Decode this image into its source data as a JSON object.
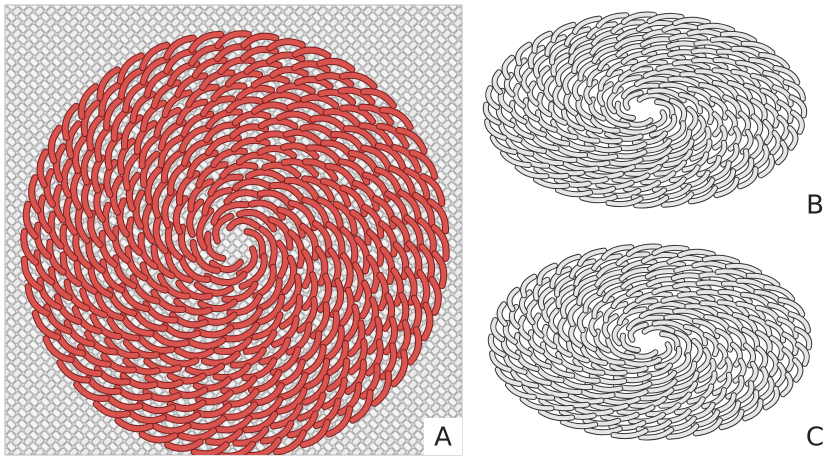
{
  "labels": [
    "A",
    "B",
    "C"
  ]
}
